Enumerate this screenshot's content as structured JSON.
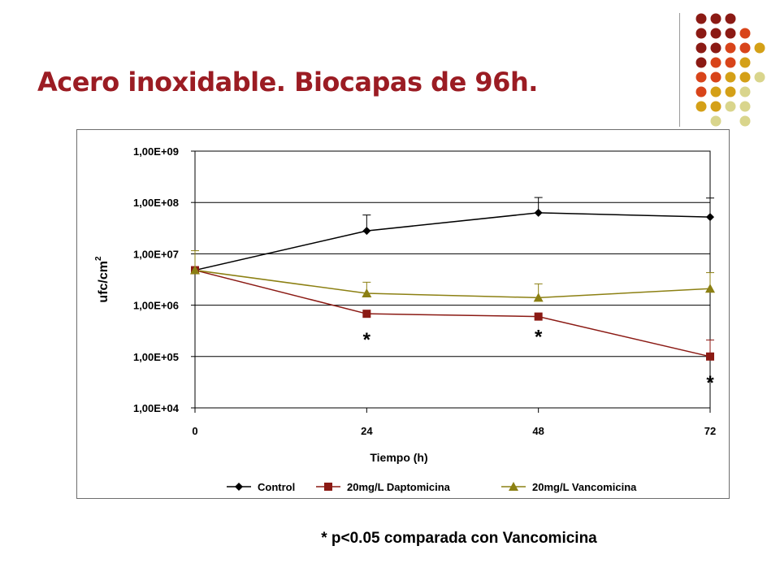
{
  "slide": {
    "title": "Acero inoxidable. Biocapas de 96h.",
    "footnote": "* p<0.05 comparada con Vancomicina",
    "title_color": "#9b1c23"
  },
  "decor": {
    "dot_rows": [
      [
        "#8b1a14",
        "#8b1a14",
        "#8b1a14",
        null,
        null
      ],
      [
        "#8b1a14",
        "#8b1a14",
        "#8b1a14",
        "#d8441a",
        null
      ],
      [
        "#8b1a14",
        "#8b1a14",
        "#d8441a",
        "#d8441a",
        "#d4a017"
      ],
      [
        "#8b1a14",
        "#d8441a",
        "#d8441a",
        "#d4a017",
        null
      ],
      [
        "#d8441a",
        "#d8441a",
        "#d4a017",
        "#d4a017",
        "#d9d58c"
      ],
      [
        "#d8441a",
        "#d4a017",
        "#d4a017",
        "#d9d58c",
        null
      ],
      [
        "#d4a017",
        "#d4a017",
        "#d9d58c",
        "#d9d58c",
        null
      ],
      [
        null,
        "#d9d58c",
        null,
        "#d9d58c",
        null
      ]
    ]
  },
  "chart_data": {
    "type": "line",
    "title": "",
    "xlabel": "Tiempo (h)",
    "ylabel": "ufc/cm",
    "ylabel_sup": "2",
    "y_scale": "log",
    "ylim": [
      10000,
      1000000000
    ],
    "xlim": [
      0,
      72
    ],
    "x": [
      0,
      24,
      48,
      72
    ],
    "x_tick_labels": [
      "0",
      "24",
      "48",
      "72"
    ],
    "y_tick_labels": [
      "1,00E+04",
      "1,00E+05",
      "1,00E+06",
      "1,00E+07",
      "1,00E+08",
      "1,00E+09"
    ],
    "grid": "horizontal",
    "legend_position": "bottom",
    "series": [
      {
        "name": "Control",
        "color": "#000000",
        "marker": "diamond",
        "values": [
          4800000,
          28000000,
          63000000,
          52000000
        ],
        "error_upper": [
          null,
          57000000,
          125000000,
          122000000
        ]
      },
      {
        "name": "20mg/L Daptomicina",
        "color": "#8b1a14",
        "marker": "square",
        "values": [
          4800000,
          680000,
          600000,
          100000
        ],
        "error_upper": [
          null,
          null,
          null,
          210000
        ]
      },
      {
        "name": "20mg/L Vancomicina",
        "color": "#8c8013",
        "marker": "triangle",
        "values": [
          4800000,
          1700000,
          1400000,
          2100000
        ],
        "error_upper": [
          11500000,
          2800000,
          2600000,
          4300000
        ]
      }
    ],
    "annotations": [
      {
        "text": "*",
        "x": 24
      },
      {
        "text": "*",
        "x": 48
      },
      {
        "text": "*",
        "x": 72
      }
    ]
  }
}
